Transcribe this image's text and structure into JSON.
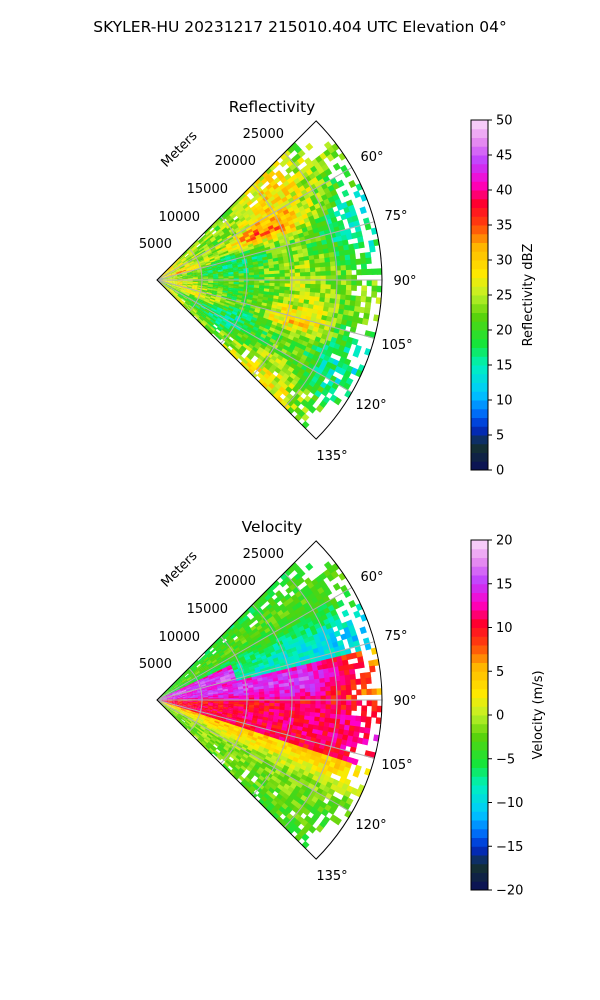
{
  "suptitle": "SKYLER-HU  20231217  215010.404 UTC Elevation 04°",
  "chart_data": [
    {
      "type": "heatmap",
      "title": "Reflectivity",
      "projection": "polar-sector",
      "theta_direction": "clockwise-from-north",
      "theta_range_deg": [
        45,
        135
      ],
      "r_range_m": [
        0,
        25000
      ],
      "r_axis_label": "Meters",
      "r_ticks": [
        5000,
        10000,
        15000,
        20000,
        25000
      ],
      "r_tick_labels": [
        "5000",
        "10000",
        "15000",
        "20000",
        "25000"
      ],
      "theta_ticks": [
        60,
        75,
        90,
        105,
        120,
        135
      ],
      "theta_tick_labels": [
        "60°",
        "75°",
        "90°",
        "105°",
        "120°",
        "135°"
      ],
      "grid": true,
      "field_description": "Mostly 20–30 dBZ; enhanced 33–38 dBZ bands near 60–70° at 7–15 km and near azimuth 68–72° close to radar; green 18–22 dBZ along 85–100°; sparse edges beyond ~22 km.",
      "field_features": [
        {
          "az": 66,
          "r": 12000,
          "value": 36
        },
        {
          "az": 72,
          "r": 3500,
          "value": 36
        },
        {
          "az": 95,
          "r": 14000,
          "value": 20
        },
        {
          "az": 108,
          "r": 16000,
          "value": 32
        },
        {
          "az": 112,
          "r": 5000,
          "value": 33
        }
      ],
      "colorbar": {
        "label": "Reflectivity dBZ",
        "vmin": 0,
        "vmax": 50,
        "ticks": [
          0,
          5,
          10,
          15,
          20,
          25,
          30,
          35,
          40,
          45,
          50
        ],
        "tick_labels": [
          "0",
          "5",
          "10",
          "15",
          "20",
          "25",
          "30",
          "35",
          "40",
          "45",
          "50"
        ]
      }
    },
    {
      "type": "heatmap",
      "title": "Velocity",
      "projection": "polar-sector",
      "theta_direction": "clockwise-from-north",
      "theta_range_deg": [
        45,
        135
      ],
      "r_range_m": [
        0,
        25000
      ],
      "r_axis_label": "Meters",
      "r_ticks": [
        5000,
        10000,
        15000,
        20000,
        25000
      ],
      "r_tick_labels": [
        "5000",
        "10000",
        "15000",
        "20000",
        "25000"
      ],
      "theta_ticks": [
        60,
        75,
        90,
        105,
        120,
        135
      ],
      "theta_tick_labels": [
        "60°",
        "75°",
        "90°",
        "105°",
        "120°",
        "135°"
      ],
      "grid": true,
      "field_description": "Outbound 5–15 m/s (red/magenta) along 85–105°, 0–5 m/s (yellow/orange) toward 110–130°, inbound -5 to -12 m/s (green/cyan) toward 50–75°.",
      "field_features": [
        {
          "az": 60,
          "r": 18000,
          "value": -6
        },
        {
          "az": 72,
          "r": 18000,
          "value": -11
        },
        {
          "az": 80,
          "r": 10000,
          "value": 14
        },
        {
          "az": 95,
          "r": 12000,
          "value": 10
        },
        {
          "az": 120,
          "r": 12000,
          "value": 2
        }
      ],
      "colorbar": {
        "label": "Velocity (m/s)",
        "vmin": -20,
        "vmax": 20,
        "ticks": [
          -20,
          -15,
          -10,
          -5,
          0,
          5,
          10,
          15,
          20
        ],
        "tick_labels": [
          "−20",
          "−15",
          "−10",
          "−5",
          "0",
          "5",
          "10",
          "15",
          "20"
        ]
      }
    }
  ]
}
